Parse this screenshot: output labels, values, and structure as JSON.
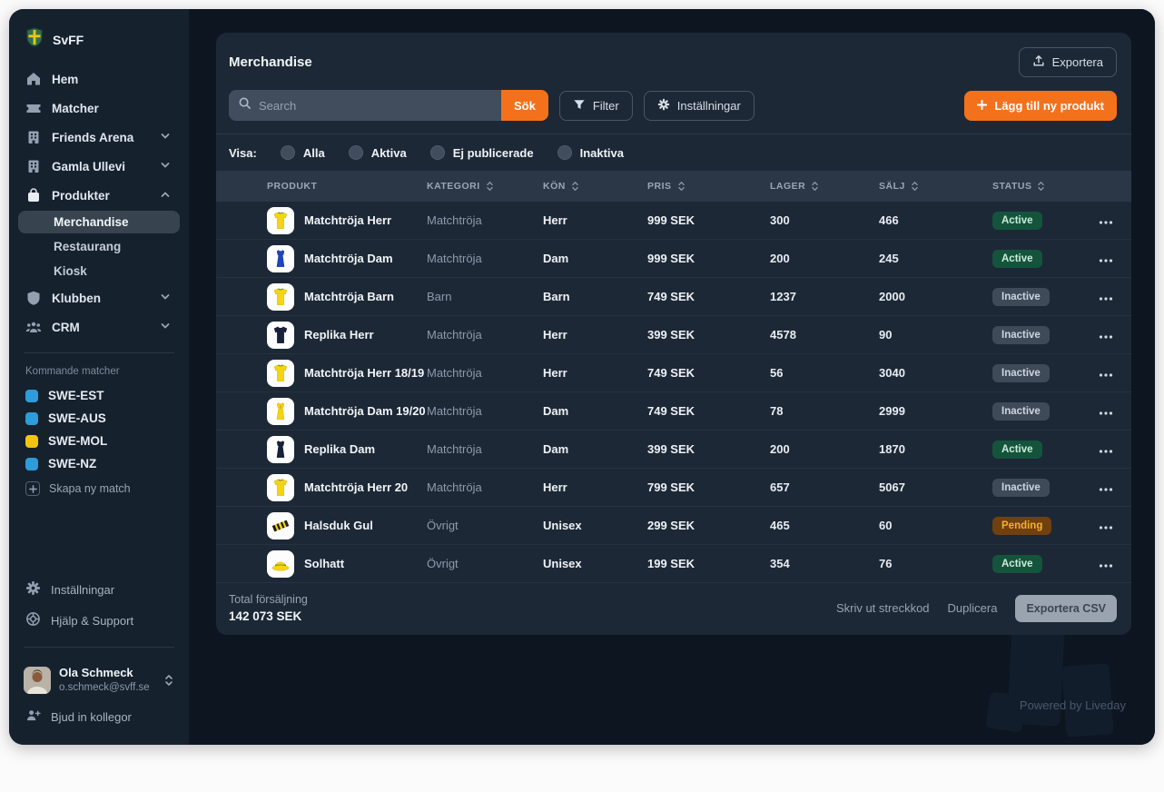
{
  "colors": {
    "accent_orange": "#f4711c",
    "status_active_bg": "#15543c",
    "status_inactive_bg": "#3f4a59",
    "status_pending_bg": "#71400f",
    "match_blue": "#2d9cdb",
    "match_yellow": "#f2c511"
  },
  "sidebar": {
    "logo_label": "SvFF",
    "nav_main": [
      {
        "label": "Hem",
        "icon": "home-icon"
      },
      {
        "label": "Matcher",
        "icon": "ticket-icon"
      },
      {
        "label": "Friends Arena",
        "icon": "building-icon",
        "chevron": "chevron-down-icon"
      },
      {
        "label": "Gamla Ullevi",
        "icon": "building-icon",
        "chevron": "chevron-down-icon"
      },
      {
        "label": "Produkter",
        "icon": "bag-icon",
        "chevron": "chevron-up-icon"
      }
    ],
    "produkter_children": [
      {
        "label": "Merchandise",
        "state": "selected"
      },
      {
        "label": "Restaurang"
      },
      {
        "label": "Kiosk"
      }
    ],
    "nav_secondary": [
      {
        "label": "Klubben",
        "icon": "shield-icon",
        "chevron": "chevron-down-icon"
      },
      {
        "label": "CRM",
        "icon": "users-icon",
        "chevron": "chevron-down-icon"
      }
    ],
    "upcoming": {
      "title": "Kommande matcher",
      "matches": [
        {
          "label": "SWE-EST",
          "color": "#2d9cdb"
        },
        {
          "label": "SWE-AUS",
          "color": "#2d9cdb"
        },
        {
          "label": "SWE-MOL",
          "color": "#f2c511"
        },
        {
          "label": "SWE-NZ",
          "color": "#2d9cdb"
        }
      ],
      "create_label": "Skapa ny match"
    },
    "footer": {
      "settings_label": "Inställningar",
      "help_label": "Hjälp & Support",
      "user_name": "Ola Schmeck",
      "user_email": "o.schmeck@svff.se",
      "invite_label": "Bjud in kollegor"
    }
  },
  "main": {
    "title": "Merchandise",
    "export_label": "Exportera",
    "search": {
      "placeholder": "Search",
      "button_label": "Sök"
    },
    "filter_label": "Filter",
    "settings_label": "Inställningar",
    "add_product_label": "Lägg till ny produkt",
    "visa": {
      "label": "Visa:",
      "options": [
        {
          "label": "Alla"
        },
        {
          "label": "Aktiva"
        },
        {
          "label": "Ej publicerade"
        },
        {
          "label": "Inaktiva"
        }
      ]
    },
    "table": {
      "headers": [
        {
          "label": "PRODUKT"
        },
        {
          "label": "KATEGORI",
          "icon": "sort-icon"
        },
        {
          "label": "KÖN",
          "icon": "sort-icon"
        },
        {
          "label": "PRIS",
          "icon": "sort-icon"
        },
        {
          "label": "LAGER",
          "icon": "sort-icon"
        },
        {
          "label": "SÄLJ",
          "icon": "sort-icon"
        },
        {
          "label": "STATUS",
          "icon": "sort-icon"
        }
      ],
      "rows": [
        {
          "product": "Matchtröja Herr",
          "thumb": "shirt-yellow-icon",
          "category": "Matchtröja",
          "gender": "Herr",
          "price": "999 SEK",
          "stock": "300",
          "sold": "466",
          "status": "Active"
        },
        {
          "product": "Matchtröja Dam",
          "thumb": "dress-blue-icon",
          "category": "Matchtröja",
          "gender": "Dam",
          "price": "999 SEK",
          "stock": "200",
          "sold": "245",
          "status": "Active"
        },
        {
          "product": "Matchtröja Barn",
          "thumb": "shirt-yellow-icon",
          "category": "Barn",
          "gender": "Barn",
          "price": "749 SEK",
          "stock": "1237",
          "sold": "2000",
          "status": "Inactive"
        },
        {
          "product": "Replika Herr",
          "thumb": "shirt-navy-icon",
          "category": "Matchtröja",
          "gender": "Herr",
          "price": "399 SEK",
          "stock": "4578",
          "sold": "90",
          "status": "Inactive"
        },
        {
          "product": "Matchtröja Herr 18/19",
          "thumb": "shirt-yellow-icon",
          "category": "Matchtröja",
          "gender": "Herr",
          "price": "749 SEK",
          "stock": "56",
          "sold": "3040",
          "status": "Inactive"
        },
        {
          "product": "Matchtröja Dam 19/20",
          "thumb": "dress-yellow-icon",
          "category": "Matchtröja",
          "gender": "Dam",
          "price": "749 SEK",
          "stock": "78",
          "sold": "2999",
          "status": "Inactive"
        },
        {
          "product": "Replika Dam",
          "thumb": "dress-navy-icon",
          "category": "Matchtröja",
          "gender": "Dam",
          "price": "399 SEK",
          "stock": "200",
          "sold": "1870",
          "status": "Active"
        },
        {
          "product": "Matchtröja Herr 20",
          "thumb": "shirt-yellow-icon",
          "category": "Matchtröja",
          "gender": "Herr",
          "price": "799 SEK",
          "stock": "657",
          "sold": "5067",
          "status": "Inactive"
        },
        {
          "product": "Halsduk Gul",
          "thumb": "scarf-icon",
          "category": "Övrigt",
          "gender": "Unisex",
          "price": "299 SEK",
          "stock": "465",
          "sold": "60",
          "status": "Pending"
        },
        {
          "product": "Solhatt",
          "thumb": "hat-icon",
          "category": "Övrigt",
          "gender": "Unisex",
          "price": "199 SEK",
          "stock": "354",
          "sold": "76",
          "status": "Active"
        }
      ]
    },
    "footer": {
      "total_label": "Total försäljning",
      "total_value": "142 073 SEK",
      "print_label": "Skriv ut streckkod",
      "duplicate_label": "Duplicera",
      "export_csv_label": "Exportera CSV"
    }
  },
  "branding": {
    "powered_by": "Powered by Liveday"
  }
}
